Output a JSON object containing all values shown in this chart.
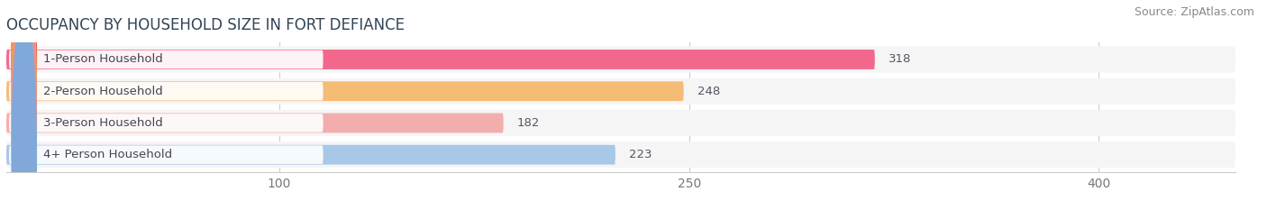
{
  "title": "OCCUPANCY BY HOUSEHOLD SIZE IN FORT DEFIANCE",
  "source": "Source: ZipAtlas.com",
  "categories": [
    "1-Person Household",
    "2-Person Household",
    "3-Person Household",
    "4+ Person Household"
  ],
  "values": [
    318,
    248,
    182,
    223
  ],
  "bar_colors": [
    "#F2688C",
    "#F5BC76",
    "#F2AEAD",
    "#A8C8E8"
  ],
  "dot_colors": [
    "#E8426A",
    "#F0A040",
    "#E89090",
    "#80A8D8"
  ],
  "xlim": [
    0,
    450
  ],
  "xticks": [
    100,
    250,
    400
  ],
  "background_color": "#FFFFFF",
  "bar_background_color": "#ECECEC",
  "row_background_color": "#F5F5F5",
  "title_fontsize": 12,
  "source_fontsize": 9,
  "tick_fontsize": 10,
  "bar_label_fontsize": 9.5,
  "category_fontsize": 9.5
}
